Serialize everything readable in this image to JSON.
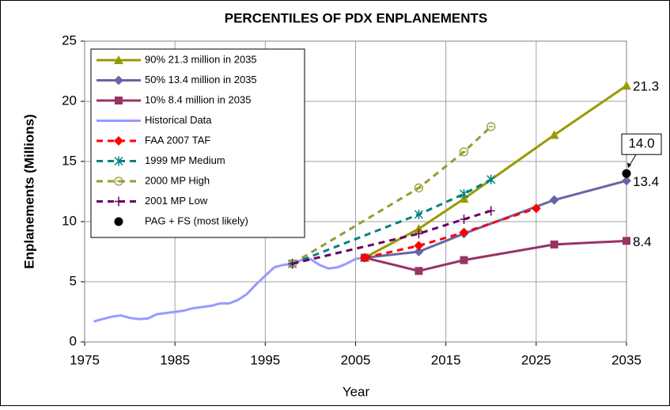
{
  "chart_data": {
    "type": "line",
    "title": "PERCENTILES OF PDX ENPLANEMENTS",
    "xlabel": "Year",
    "ylabel": "Enplanements (Millions)",
    "xlim": [
      1975,
      2035
    ],
    "xticks": [
      1975,
      1985,
      1995,
      2005,
      2015,
      2025,
      2035
    ],
    "ylim": [
      0,
      25
    ],
    "yticks": [
      0,
      5,
      10,
      15,
      20,
      25
    ],
    "grid": true,
    "legend": "upper left",
    "series": [
      {
        "name": "90%  21.3 million in 2035",
        "color": "#999900",
        "marker": "triangle",
        "dash": false,
        "x": [
          2006,
          2012,
          2017,
          2027,
          2035
        ],
        "values": [
          7.0,
          9.4,
          11.9,
          17.2,
          21.3
        ],
        "value_labels": [
          null,
          null,
          null,
          null,
          "21.3"
        ]
      },
      {
        "name": "50%   13.4 million in 2035",
        "color": "#6666a6",
        "marker": "diamond",
        "dash": false,
        "x": [
          2006,
          2012,
          2017,
          2027,
          2035
        ],
        "values": [
          7.0,
          7.5,
          9.0,
          11.8,
          13.4
        ],
        "value_labels": [
          null,
          null,
          null,
          null,
          "13.4"
        ]
      },
      {
        "name": "10%  8.4 million in 2035",
        "color": "#993366",
        "marker": "square",
        "dash": false,
        "x": [
          2006,
          2012,
          2017,
          2027,
          2035
        ],
        "values": [
          7.0,
          5.9,
          6.8,
          8.1,
          8.4
        ],
        "value_labels": [
          null,
          null,
          null,
          null,
          "8.4"
        ]
      },
      {
        "name": "Historical Data",
        "color": "#9999ff",
        "marker": "none",
        "dash": false,
        "x": [
          1976,
          1978,
          1979,
          1980,
          1981,
          1982,
          1983,
          1984,
          1985,
          1986,
          1987,
          1988,
          1989,
          1990,
          1991,
          1992,
          1993,
          1994,
          1995,
          1996,
          1997,
          1998,
          1999,
          2000,
          2001,
          2002,
          2003,
          2004,
          2005,
          2006
        ],
        "values": [
          1.7,
          2.1,
          2.2,
          2.0,
          1.9,
          1.95,
          2.3,
          2.4,
          2.5,
          2.6,
          2.8,
          2.9,
          3.0,
          3.2,
          3.2,
          3.5,
          4.0,
          4.8,
          5.5,
          6.2,
          6.4,
          6.5,
          6.8,
          6.9,
          6.4,
          6.1,
          6.2,
          6.5,
          6.9,
          7.0
        ]
      },
      {
        "name": "FAA 2007 TAF",
        "color": "#ff0000",
        "marker": "diamond",
        "dash": true,
        "x": [
          2006,
          2012,
          2017,
          2025
        ],
        "values": [
          7.0,
          8.0,
          9.1,
          11.1
        ]
      },
      {
        "name": "1999 MP Medium",
        "color": "#008080",
        "marker": "asterisk",
        "dash": true,
        "x": [
          1998,
          2012,
          2017,
          2020
        ],
        "values": [
          6.5,
          10.6,
          12.3,
          13.5
        ]
      },
      {
        "name": "2000 MP High",
        "color": "#999933",
        "marker": "circle-open",
        "dash": true,
        "x": [
          1998,
          2012,
          2017,
          2020
        ],
        "values": [
          6.5,
          12.8,
          15.8,
          17.9
        ]
      },
      {
        "name": "2001 MP Low",
        "color": "#660066",
        "marker": "plus",
        "dash": true,
        "x": [
          1998,
          2012,
          2017,
          2020
        ],
        "values": [
          6.5,
          9.0,
          10.2,
          10.9
        ]
      },
      {
        "name": "PAG + FS (most likely)",
        "color": "#000000",
        "marker": "circle",
        "dash": false,
        "x": [
          2035
        ],
        "values": [
          14.0
        ],
        "value_labels": [
          "14.0"
        ]
      }
    ]
  }
}
